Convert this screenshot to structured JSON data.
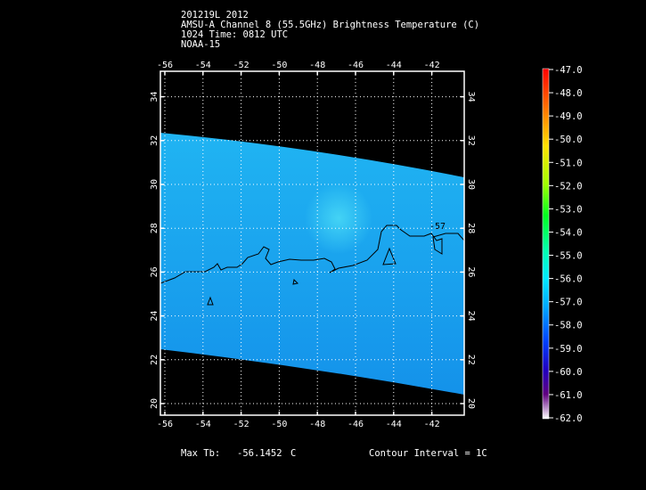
{
  "header": {
    "line1": "201219L 2012",
    "line2": "AMSU-A Channel 8 (55.5GHz) Brightness Temperature (C)",
    "line3": "1024 Time: 0812 UTC",
    "line4": "NOAA-15"
  },
  "map": {
    "lon_ticks": [
      "-56",
      "-54",
      "-52",
      "-50",
      "-48",
      "-46",
      "-44",
      "-42"
    ],
    "lat_ticks": [
      "20",
      "22",
      "24",
      "26",
      "28",
      "30",
      "32",
      "34"
    ],
    "contour_label": "-57",
    "swath_color": "#1aa9ef",
    "warm_spot_color": "#3fd0f5",
    "contour_color": "#000000"
  },
  "colorbar": {
    "labels": [
      "-47.0",
      "-48.0",
      "-49.0",
      "-50.0",
      "-51.0",
      "-52.0",
      "-53.0",
      "-54.0",
      "-55.0",
      "-56.0",
      "-57.0",
      "-58.0",
      "-59.0",
      "-60.0",
      "-61.0",
      "-62.0"
    ]
  },
  "footer": {
    "max_tb_label": "Max Tb:",
    "max_tb_value": "-56.1452",
    "max_tb_unit": "C",
    "contour_interval": "Contour Interval = 1C"
  }
}
